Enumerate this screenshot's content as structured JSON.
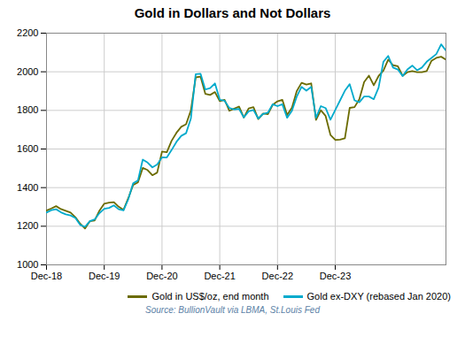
{
  "chart_data": {
    "type": "line",
    "title": "Gold in Dollars and Not Dollars",
    "source": "Source: BullionVault via LBMA, St.Louis Fed",
    "x": [
      0,
      1,
      2,
      3,
      4,
      5,
      6,
      7,
      8,
      9,
      10,
      11,
      12,
      13,
      14,
      15,
      16,
      17,
      18,
      19,
      20,
      21,
      22,
      23,
      24,
      25,
      26,
      27,
      28,
      29,
      30,
      31,
      32,
      33,
      34,
      35,
      36,
      37,
      38,
      39,
      40,
      41,
      42,
      43,
      44,
      45,
      46,
      47,
      48,
      49,
      50,
      51,
      52,
      53,
      54,
      55,
      56,
      57,
      58,
      59,
      60,
      61,
      62,
      63,
      64,
      65,
      66,
      67,
      68,
      69,
      70,
      71,
      72,
      73,
      74,
      75,
      76,
      77,
      78,
      79,
      80,
      81,
      82,
      83
    ],
    "xlim": [
      0,
      83
    ],
    "xticks": [
      {
        "value": 0,
        "label": "Dec-18"
      },
      {
        "value": 12,
        "label": "Dec-19"
      },
      {
        "value": 24,
        "label": "Dec-20"
      },
      {
        "value": 36,
        "label": "Dec-21"
      },
      {
        "value": 48,
        "label": "Dec-22"
      },
      {
        "value": 60,
        "label": "Dec-23"
      }
    ],
    "ylim": [
      1000,
      2200
    ],
    "yticks": [
      1000,
      1200,
      1400,
      1600,
      1800,
      2000,
      2200
    ],
    "grid": true,
    "legend": "lower right",
    "series": [
      {
        "name": "Gold in US$/oz, end month",
        "color": "#6B6B00",
        "values": [
          1281,
          1292,
          1304,
          1289,
          1280,
          1271,
          1247,
          1213,
          1188,
          1226,
          1230,
          1281,
          1317,
          1322,
          1325,
          1301,
          1285,
          1346,
          1414,
          1427,
          1502,
          1491,
          1464,
          1478,
          1587,
          1583,
          1643,
          1684,
          1715,
          1728,
          1800,
          1971,
          1975,
          1886,
          1880,
          1895,
          1848,
          1855,
          1798,
          1809,
          1820,
          1763,
          1810,
          1817,
          1755,
          1784,
          1780,
          1829,
          1847,
          1855,
          1776,
          1814,
          1900,
          1943,
          1934,
          1940,
          1751,
          1801,
          1771,
          1673,
          1647,
          1649,
          1656,
          1813,
          1817,
          1858,
          1947,
          1980,
          1930,
          1978,
          2006,
          2063,
          2034,
          2029,
          1979,
          1998,
          2004,
          1998,
          1998,
          2004,
          2057,
          2072,
          2078,
          2063
        ]
      },
      {
        "name": "Gold ex-DXY (rebased Jan 2020)",
        "color": "#00AACC",
        "values": [
          1271,
          1283,
          1288,
          1272,
          1262,
          1256,
          1243,
          1207,
          1197,
          1226,
          1235,
          1268,
          1290,
          1295,
          1308,
          1288,
          1282,
          1340,
          1422,
          1437,
          1545,
          1530,
          1505,
          1520,
          1557,
          1556,
          1595,
          1637,
          1668,
          1682,
          1758,
          1988,
          1990,
          1908,
          1915,
          1940,
          1855,
          1850,
          1812,
          1805,
          1808,
          1764,
          1795,
          1802,
          1758,
          1782,
          1788,
          1832,
          1822,
          1832,
          1762,
          1798,
          1872,
          1922,
          1902,
          1922,
          1762,
          1822,
          1812,
          1752,
          1802,
          1852,
          1902,
          1936,
          1852,
          1842,
          1872,
          1872,
          1858,
          1918,
          2052,
          2082,
          2022,
          2012,
          1978,
          2012,
          2032,
          2008,
          2022,
          2052,
          2072,
          2092,
          2142,
          2110
        ]
      }
    ]
  }
}
